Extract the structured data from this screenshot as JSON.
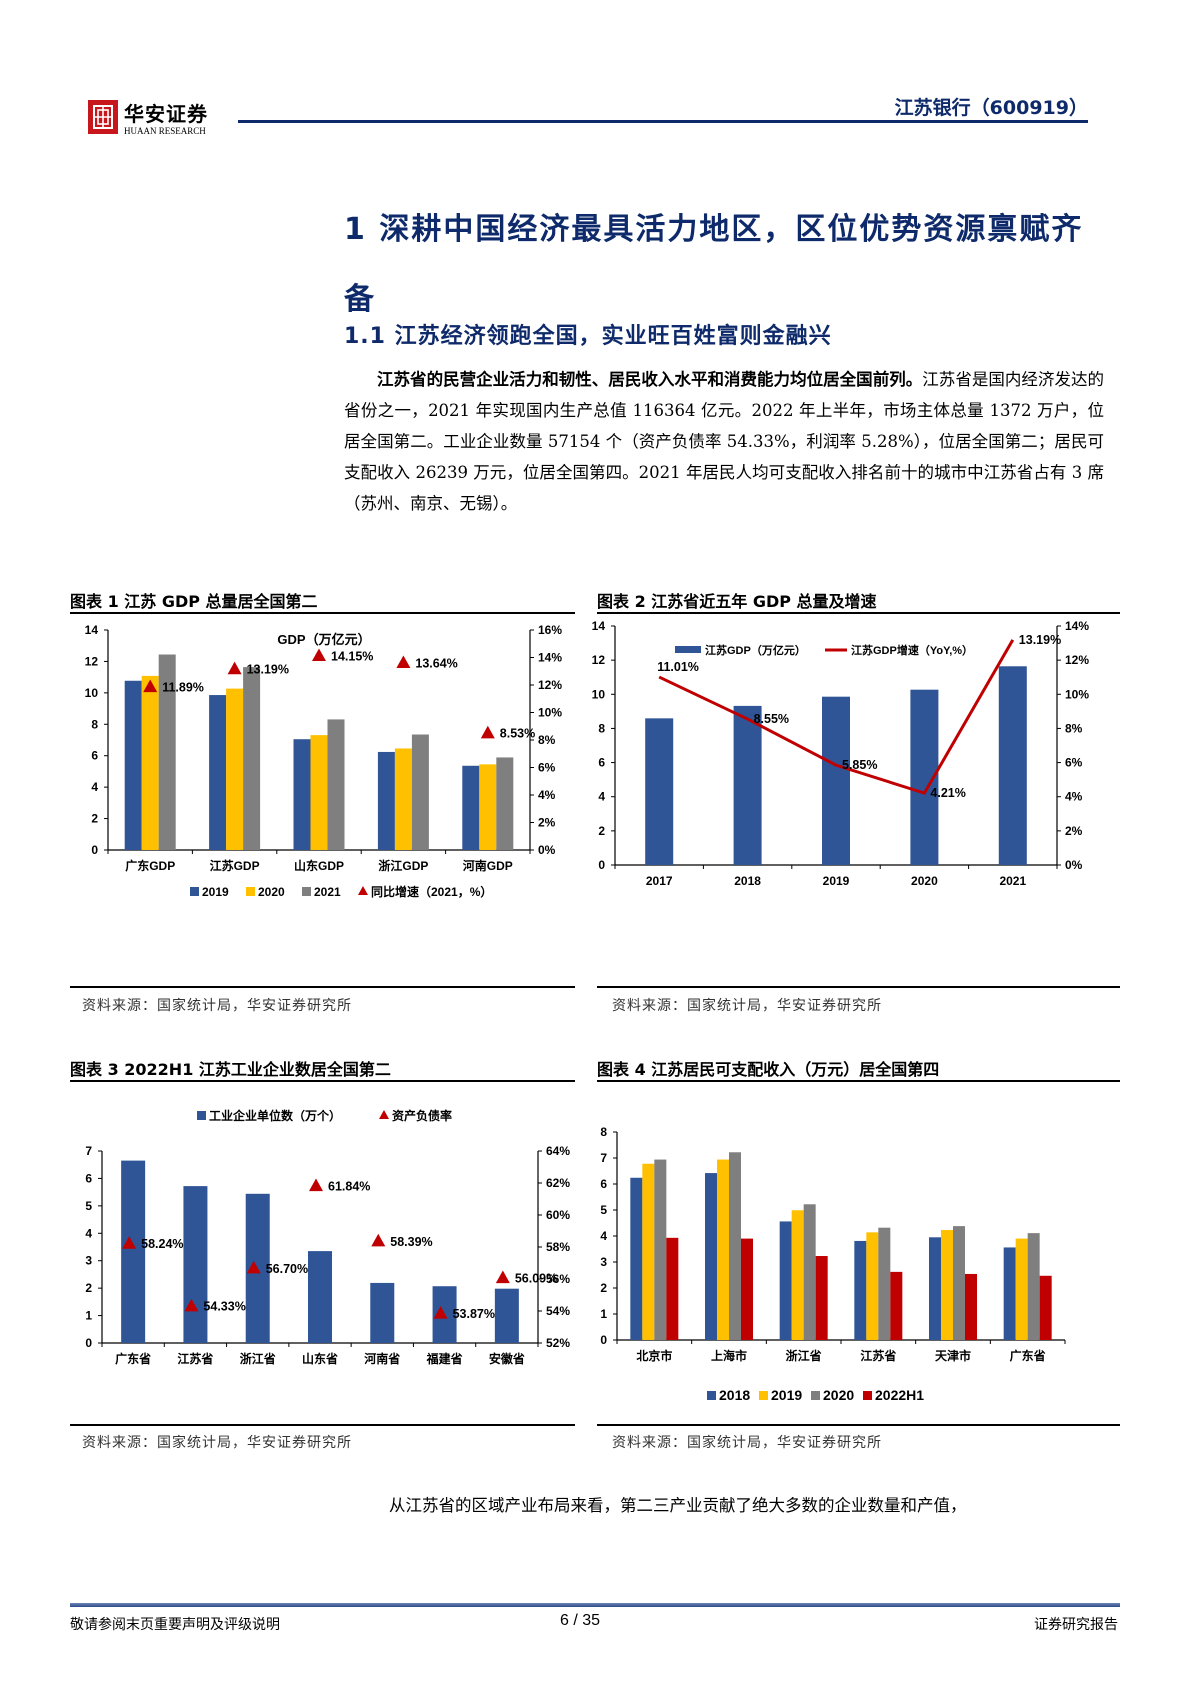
{
  "header": {
    "logo_cn": "华安证券",
    "logo_en": "HUAAN RESEARCH",
    "report_title": "江苏银行（600919）"
  },
  "section": {
    "h1": "1  深耕中国经济最具活力地区，区位优势资源禀赋齐备",
    "h2": "1.1  江苏经济领跑全国，实业旺百姓富则金融兴",
    "para_bold": "江苏省的民营企业活力和韧性、居民收入水平和消费能力均位居全国前列。",
    "para_text": "江苏省是国内经济发达的省份之一，2021 年实现国内生产总值 116364 亿元。2022 年上半年，市场主体总量 1372 万户，位居全国第二。工业企业数量 57154 个（资产负债率 54.33%，利润率 5.28%），位居全国第二；居民可支配收入 26239 万元，位居全国第四。2021 年居民人均可支配收入排名前十的城市中江苏省占有 3 席（苏州、南京、无锡）。"
  },
  "figures": {
    "fig1": {
      "title": "图表 1  江苏 GDP 总量居全国第二",
      "source": "资料来源：国家统计局，华安证券研究所"
    },
    "fig2": {
      "title": "图表 2  江苏省近五年 GDP 总量及增速",
      "source": "资料来源：国家统计局，华安证券研究所"
    },
    "fig3": {
      "title": "图表 3 2022H1 江苏工业企业数居全国第二",
      "source": "资料来源：国家统计局，华安证券研究所"
    },
    "fig4": {
      "title": "图表 4  江苏居民可支配收入（万元）居全国第四",
      "source": "资料来源：国家统计局，华安证券研究所"
    }
  },
  "chart_data": [
    {
      "type": "bar",
      "title": "GDP（万亿元）",
      "categories": [
        "广东GDP",
        "江苏GDP",
        "山东GDP",
        "浙江GDP",
        "河南GDP"
      ],
      "series": [
        {
          "name": "2019",
          "color": "#2f5597",
          "values": [
            10.77,
            9.86,
            7.05,
            6.24,
            5.36
          ]
        },
        {
          "name": "2020",
          "color": "#ffc000",
          "values": [
            11.08,
            10.27,
            7.31,
            6.46,
            5.45
          ]
        },
        {
          "name": "2021",
          "color": "#7f7f7f",
          "values": [
            12.44,
            11.64,
            8.31,
            7.35,
            5.89
          ]
        },
        {
          "name": "同比增速（2021，%）",
          "color": "#c00000",
          "marker": "triangle",
          "axis": "right",
          "values": [
            11.89,
            13.19,
            14.15,
            13.64,
            8.53
          ],
          "labels": [
            "11.89%",
            "13.19%",
            "14.15%",
            "13.64%",
            "8.53%"
          ]
        }
      ],
      "ylim": [
        0,
        14
      ],
      "yticks": [
        0,
        2,
        4,
        6,
        8,
        10,
        12,
        14
      ],
      "y2lim": [
        0,
        16
      ],
      "y2ticks": [
        "0%",
        "2%",
        "4%",
        "6%",
        "8%",
        "10%",
        "12%",
        "14%",
        "16%"
      ],
      "legend_position": "bottom"
    },
    {
      "type": "bar",
      "title": "",
      "categories": [
        "2017",
        "2018",
        "2019",
        "2020",
        "2021"
      ],
      "series": [
        {
          "name": "江苏GDP（万亿元）",
          "color": "#2f5597",
          "values": [
            8.59,
            9.32,
            9.86,
            10.27,
            11.64
          ]
        },
        {
          "name": "江苏GDP增速（YoY,%）",
          "type": "line",
          "color": "#c00000",
          "axis": "right",
          "values": [
            11.01,
            8.55,
            5.85,
            4.21,
            13.19
          ],
          "labels": [
            "11.01%",
            "8.55%",
            "5.85%",
            "4.21%",
            "13.19%"
          ]
        }
      ],
      "ylim": [
        0,
        14
      ],
      "yticks": [
        0,
        2,
        4,
        6,
        8,
        10,
        12,
        14
      ],
      "y2lim": [
        0,
        14
      ],
      "y2ticks": [
        "0%",
        "2%",
        "4%",
        "6%",
        "8%",
        "10%",
        "12%",
        "14%"
      ],
      "legend_position": "top"
    },
    {
      "type": "bar",
      "title": "",
      "categories": [
        "广东省",
        "江苏省",
        "浙江省",
        "山东省",
        "河南省",
        "福建省",
        "安徽省"
      ],
      "series": [
        {
          "name": "工业企业单位数（万个）",
          "color": "#2f5597",
          "values": [
            6.65,
            5.72,
            5.44,
            3.35,
            2.19,
            2.07,
            1.98
          ]
        },
        {
          "name": "资产负债率",
          "color": "#c00000",
          "marker": "triangle",
          "axis": "right",
          "values": [
            58.24,
            54.33,
            56.7,
            61.84,
            58.39,
            53.87,
            56.09
          ],
          "labels": [
            "58.24%",
            "54.33%",
            "56.70%",
            "61.84%",
            "58.39%",
            "53.87%",
            "56.09%"
          ]
        }
      ],
      "ylim": [
        0,
        7
      ],
      "yticks": [
        0,
        1,
        2,
        3,
        4,
        5,
        6,
        7
      ],
      "y2lim": [
        52,
        64
      ],
      "y2ticks": [
        "52%",
        "54%",
        "56%",
        "58%",
        "60%",
        "62%",
        "64%"
      ],
      "legend_position": "top"
    },
    {
      "type": "bar",
      "title": "",
      "categories": [
        "北京市",
        "上海市",
        "浙江省",
        "江苏省",
        "天津市",
        "广东省"
      ],
      "series": [
        {
          "name": "2018",
          "color": "#2f5597",
          "values": [
            6.24,
            6.42,
            4.56,
            3.81,
            3.95,
            3.56
          ]
        },
        {
          "name": "2019",
          "color": "#ffc000",
          "values": [
            6.78,
            6.94,
            4.99,
            4.14,
            4.23,
            3.9
          ]
        },
        {
          "name": "2020",
          "color": "#7f7f7f",
          "values": [
            6.94,
            7.22,
            5.22,
            4.32,
            4.38,
            4.11
          ]
        },
        {
          "name": "2022H1",
          "color": "#c00000",
          "values": [
            3.93,
            3.9,
            3.23,
            2.62,
            2.54,
            2.47
          ]
        }
      ],
      "ylim": [
        0,
        8
      ],
      "yticks": [
        0,
        1,
        2,
        3,
        4,
        5,
        6,
        7,
        8
      ],
      "legend_position": "bottom"
    }
  ],
  "last_paragraph": "从江苏省的区域产业布局来看，第二三产业贡献了绝大多数的企业数量和产值，",
  "footer": {
    "left": "敬请参阅末页重要声明及评级说明",
    "page": "6 / 35",
    "right": "证券研究报告"
  }
}
